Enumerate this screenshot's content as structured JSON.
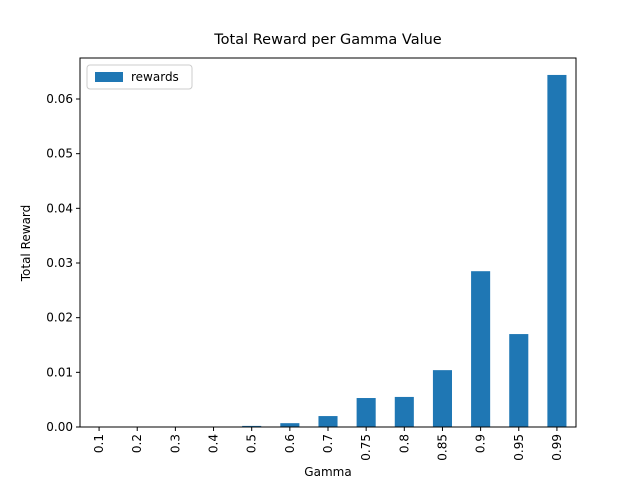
{
  "chart_data": {
    "type": "bar",
    "title": "Total Reward per Gamma Value",
    "xlabel": "Gamma",
    "ylabel": "Total Reward",
    "categories": [
      "0.1",
      "0.2",
      "0.3",
      "0.4",
      "0.5",
      "0.6",
      "0.7",
      "0.75",
      "0.8",
      "0.85",
      "0.9",
      "0.95",
      "0.99"
    ],
    "series": [
      {
        "name": "rewards",
        "color": "#1f77b4",
        "values": [
          0,
          0,
          0,
          0,
          0.0002,
          0.0007,
          0.002,
          0.0053,
          0.0055,
          0.0104,
          0.0285,
          0.017,
          0.0644
        ]
      }
    ],
    "ylim": [
      0,
      0.0675
    ],
    "yticks": [
      {
        "value": 0,
        "label": "0.00"
      },
      {
        "value": 0.01,
        "label": "0.01"
      },
      {
        "value": 0.02,
        "label": "0.02"
      },
      {
        "value": 0.03,
        "label": "0.03"
      },
      {
        "value": 0.04,
        "label": "0.04"
      },
      {
        "value": 0.05,
        "label": "0.05"
      },
      {
        "value": 0.06,
        "label": "0.06"
      }
    ],
    "legend": "upper left",
    "grid": false
  }
}
